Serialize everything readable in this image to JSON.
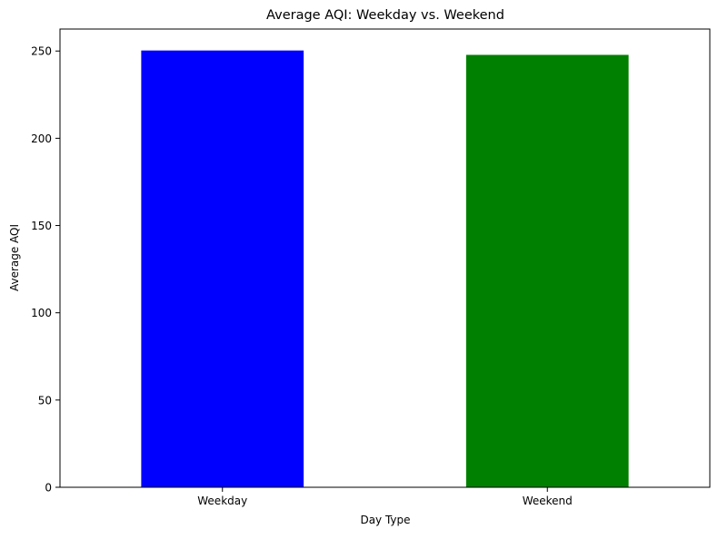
{
  "chart_data": {
    "type": "bar",
    "title": "Average AQI: Weekday vs. Weekend",
    "xlabel": "Day Type",
    "ylabel": "Average AQI",
    "categories": [
      "Weekday",
      "Weekend"
    ],
    "values": [
      250.3,
      247.8
    ],
    "colors": [
      "#0000ff",
      "#008000"
    ],
    "ylim": [
      0,
      262.6
    ],
    "yticks": [
      0,
      50,
      100,
      150,
      200,
      250
    ],
    "grid": false,
    "legend": "none"
  }
}
